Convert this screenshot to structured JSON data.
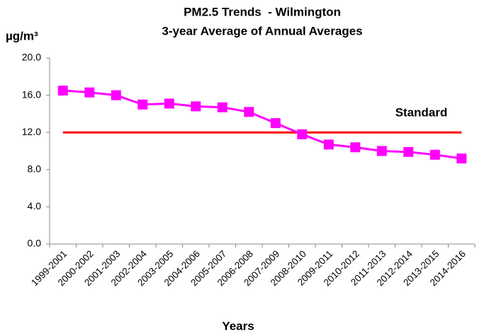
{
  "chart_data": {
    "type": "line",
    "title": "PM2.5 Trends  - Wilmington",
    "subtitle": "3-year Average of Annual Averages",
    "y_label": "µg/m³",
    "x_label": "Years",
    "categories": [
      "1999-2001",
      "2000-2002",
      "2001-2003",
      "2002-2004",
      "2003-2005",
      "2004-2006",
      "2005-2007",
      "2006-2008",
      "2007-2009",
      "2008-2010",
      "2009-2011",
      "2010-2012",
      "2011-2013",
      "2012-2014",
      "2013-2015",
      "2014-2016"
    ],
    "values": [
      16.5,
      16.3,
      16.0,
      15.0,
      15.1,
      14.8,
      14.7,
      14.2,
      13.0,
      11.8,
      10.7,
      10.4,
      10.0,
      9.9,
      9.6,
      9.2
    ],
    "color": "#ff00ff",
    "marker": "square",
    "reference_line": {
      "label": "Standard",
      "value": 12,
      "color": "#ff0000"
    },
    "ylim": [
      0,
      20
    ],
    "yticks": [
      {
        "value": 0,
        "label": "0.0"
      },
      {
        "value": 4,
        "label": "4.0"
      },
      {
        "value": 8,
        "label": "8.0"
      },
      {
        "value": 12,
        "label": "12.0"
      },
      {
        "value": 16,
        "label": "16.0"
      },
      {
        "value": 20,
        "label": "20.0"
      }
    ],
    "grid": false
  }
}
